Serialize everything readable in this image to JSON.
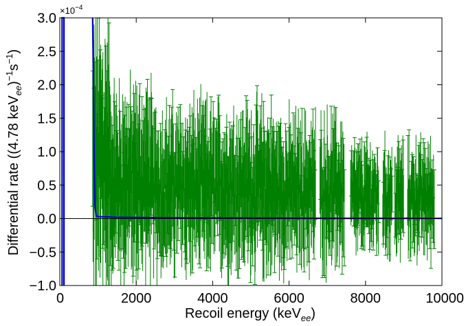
{
  "chart_data": {
    "type": "line",
    "xlabel": "Recoil energy (keV",
    "xlabel_sub": "ee",
    "xlabel_end": ")",
    "ylabel_prefix": "Differential rate ((4.78 keV",
    "ylabel_sub": "ee",
    "ylabel_mid": ")",
    "ylabel_sup1": "−1",
    "ylabel_s": "s",
    "ylabel_sup2": "−1",
    "ylabel_end": ")",
    "y_scale_base": "×10",
    "y_scale_exp": "−4",
    "xlim": [
      0,
      10000
    ],
    "ylim": [
      -1.0,
      3.0
    ],
    "x_ticks": [
      0,
      2000,
      4000,
      6000,
      8000,
      10000
    ],
    "x_tick_labels": [
      "0",
      "2000",
      "4000",
      "6000",
      "8000",
      "10000"
    ],
    "y_ticks": [
      -1.0,
      -0.5,
      0.0,
      0.5,
      1.0,
      1.5,
      2.0,
      2.5,
      3.0
    ],
    "y_tick_labels": [
      "−1.0",
      "−0.5",
      "0.0",
      "0.5",
      "1.0",
      "1.5",
      "2.0",
      "2.5",
      "3.0"
    ],
    "grid": false,
    "zero_line": 0.0,
    "series": [
      {
        "kind": "errorbar",
        "color": "#008000",
        "x_start": 860,
        "x_end": 9800,
        "bin_width": 4.78,
        "level_bands": [
          {
            "x_from": 860,
            "x_to": 1300,
            "center": 0.9,
            "spread": 1.9
          },
          {
            "x_from": 1300,
            "x_to": 2400,
            "center": 0.55,
            "spread": 1.25
          },
          {
            "x_from": 2400,
            "x_to": 5600,
            "center": 0.45,
            "spread": 1.1
          },
          {
            "x_from": 5600,
            "x_to": 7600,
            "center": 0.4,
            "spread": 1.0
          },
          {
            "x_from": 7600,
            "x_to": 9800,
            "center": 0.3,
            "spread": 0.75
          }
        ],
        "gaps": [
          [
            6700,
            6800
          ],
          [
            7450,
            7600
          ],
          [
            8350,
            8450
          ],
          [
            8700,
            8760
          ],
          [
            9000,
            9100
          ]
        ]
      },
      {
        "kind": "line",
        "color": "#0000cc",
        "points": [
          [
            60,
            -1.0
          ],
          [
            60,
            3.0
          ],
          [
            110,
            3.0
          ],
          [
            110,
            -1.0
          ],
          [
            860,
            3.0
          ],
          [
            880,
            2.0
          ],
          [
            900,
            0.9
          ],
          [
            920,
            0.2
          ],
          [
            950,
            0.04
          ],
          [
            1000,
            0.03
          ],
          [
            1500,
            0.02
          ],
          [
            3000,
            0.01
          ],
          [
            6000,
            0.005
          ],
          [
            10000,
            0.003
          ]
        ]
      }
    ]
  }
}
